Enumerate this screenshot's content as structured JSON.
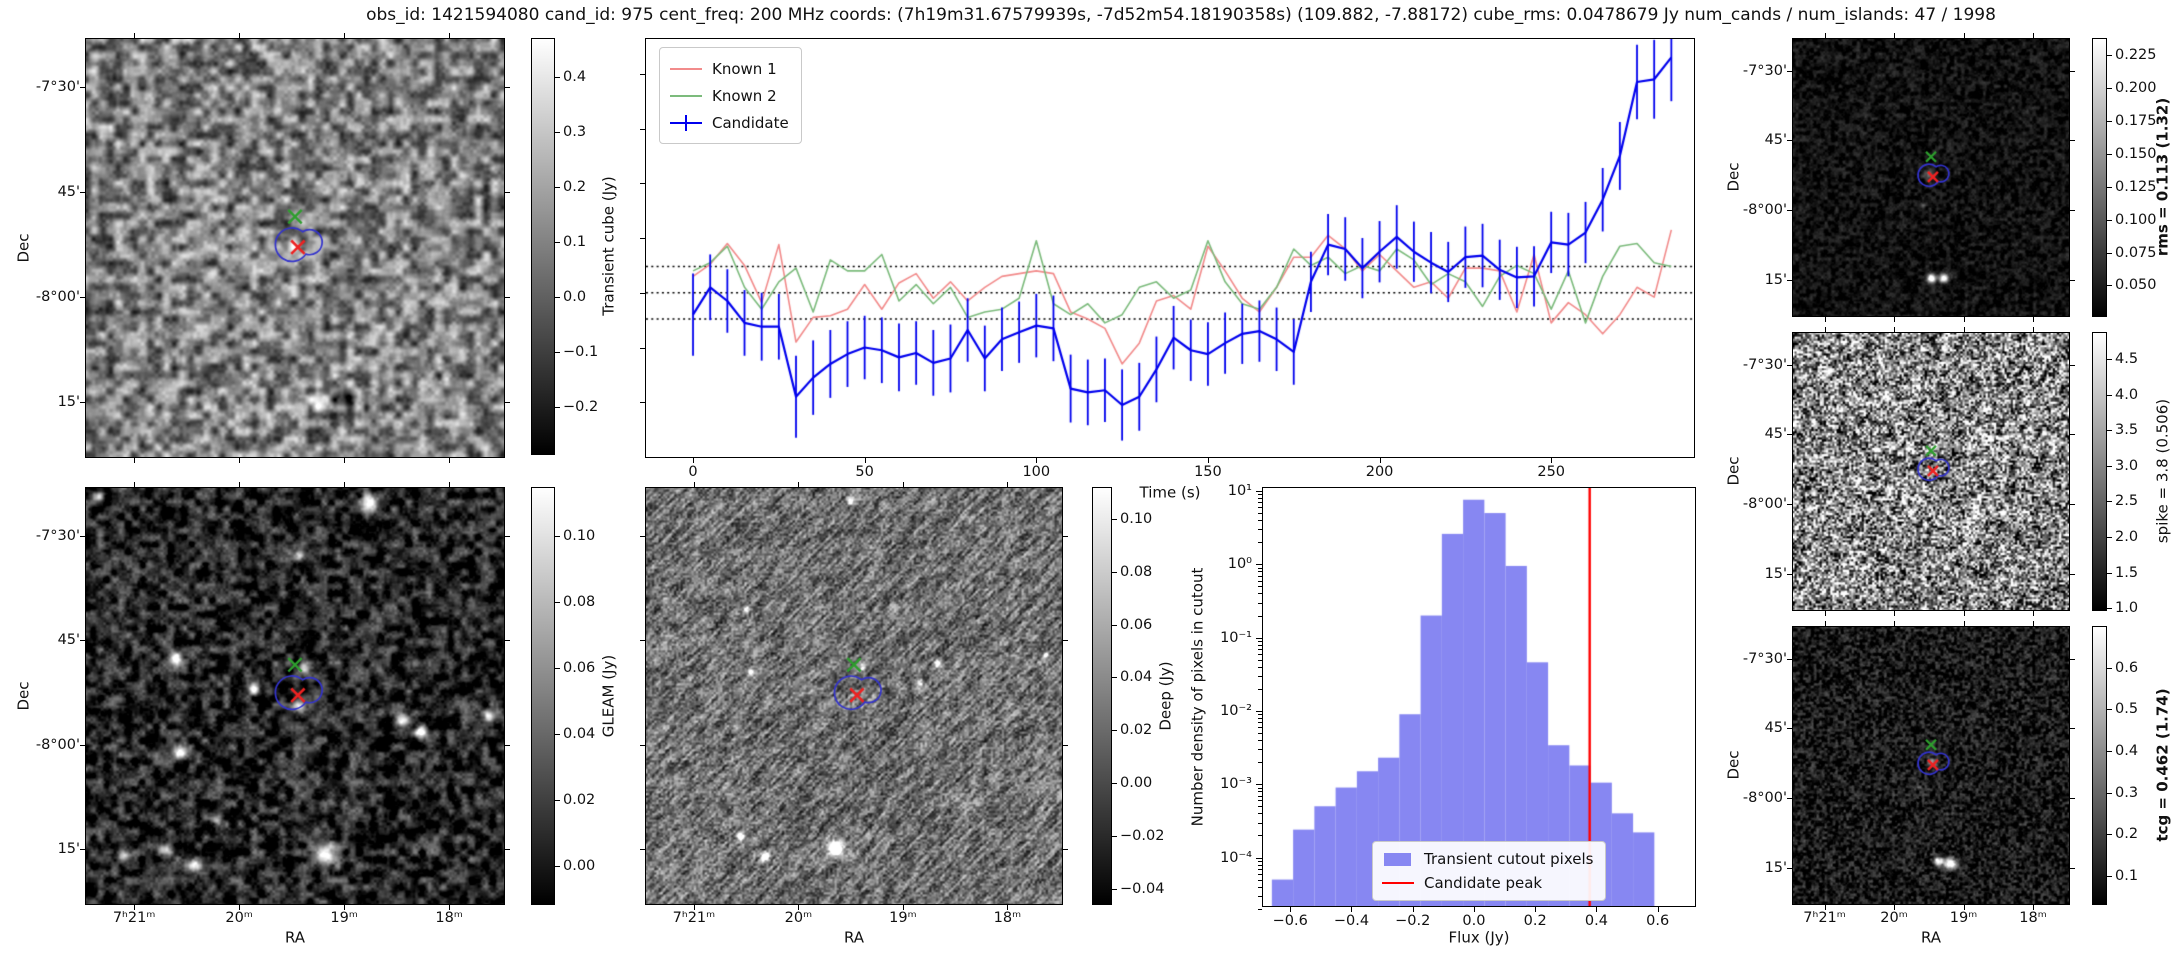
{
  "title": "obs_id: 1421594080 cand_id: 975 cent_freq: 200 MHz coords: (7h19m31.67579939s, -7d52m54.18190358s) (109.882, -7.88172) cube_rms: 0.0478679 Jy num_cands / num_islands: 47 / 1998",
  "labels": {
    "dec": "Dec",
    "ra": "RA",
    "time_axis": "Time (s)",
    "flux_axis": "Flux (Jy)",
    "hist_y": "Number density of pixels in cutout"
  },
  "colors": {
    "known1": "#f28b8b",
    "known2": "#7cbb7c",
    "candidate": "#0000ee",
    "hist_fill": "#8787f2",
    "peak_line": "#ff0000",
    "marker_green": "#2e9e2e",
    "marker_red": "#ee2222",
    "contour_blue": "#3333cc",
    "dotted_line": "#000000"
  },
  "sky": {
    "dec_ticks": [
      "-7°30'",
      "45'",
      "-8°00'",
      "15'"
    ],
    "ra_ticks": [
      "7ʰ21ᵐ",
      "20ᵐ",
      "19ᵐ",
      "18ᵐ"
    ],
    "markers": {
      "green_x": [
        0.5,
        0.425
      ],
      "red_x": [
        0.507,
        0.498
      ],
      "contour_center": [
        0.505,
        0.492
      ]
    }
  },
  "hist_legend": [
    "Transient cutout pixels",
    "Candidate peak"
  ],
  "chart_data": [
    {
      "type": "line",
      "name": "lightcurve",
      "xlabel": "Time (s)",
      "xticks": [
        0,
        50,
        100,
        150,
        200,
        250
      ],
      "xlim": [
        -13.7,
        291.6
      ],
      "ylim": [
        -0.3,
        0.4636
      ],
      "yticks_unlabeled": [
        -0.2,
        -0.1,
        0.0,
        0.1,
        0.2,
        0.3,
        0.4
      ],
      "hlines": [
        0.0478679,
        0.0,
        -0.0478679
      ],
      "x": [
        0,
        5,
        10,
        15,
        20,
        25,
        30,
        35,
        40,
        45,
        50,
        55,
        60,
        65,
        70,
        75,
        80,
        85,
        90,
        95,
        100,
        105,
        110,
        115,
        120,
        125,
        130,
        135,
        140,
        145,
        150,
        155,
        160,
        165,
        170,
        175,
        180,
        185,
        190,
        195,
        200,
        205,
        210,
        215,
        220,
        225,
        230,
        235,
        240,
        245,
        250,
        255,
        260,
        265,
        270,
        275,
        280,
        285
      ],
      "series": [
        {
          "name": "Known 1",
          "values": [
            0.03,
            0.052,
            0.09,
            0.05,
            -0.018,
            0.088,
            -0.09,
            -0.045,
            -0.042,
            -0.03,
            0.015,
            -0.03,
            0.018,
            0.035,
            -0.01,
            0.02,
            -0.015,
            0.01,
            0.03,
            0.035,
            0.04,
            0.035,
            -0.035,
            -0.048,
            -0.065,
            -0.13,
            -0.092,
            -0.015,
            -0.005,
            -0.03,
            0.085,
            0.04,
            -0.01,
            -0.035,
            0.01,
            0.065,
            0.065,
            0.105,
            0.08,
            0.04,
            0.07,
            0.04,
            0.01,
            0.02,
            -0.01,
            0.045,
            0.045,
            0.04,
            -0.035,
            0.07,
            -0.055,
            -0.018,
            -0.04,
            -0.075,
            -0.04,
            0.01,
            -0.008,
            0.115
          ]
        },
        {
          "name": "Known 2",
          "values": [
            0.04,
            0.055,
            0.085,
            0.01,
            -0.03,
            0.02,
            0.045,
            -0.035,
            0.06,
            0.04,
            0.04,
            0.07,
            -0.015,
            0.015,
            -0.02,
            0.01,
            -0.045,
            -0.035,
            -0.03,
            -0.01,
            0.095,
            -0.02,
            -0.04,
            -0.02,
            -0.055,
            -0.04,
            0.01,
            0.02,
            -0.01,
            0.005,
            0.095,
            0.02,
            -0.02,
            -0.03,
            0.01,
            0.08,
            0.05,
            0.065,
            0.035,
            0.05,
            0.04,
            0.08,
            0.06,
            0.015,
            0.035,
            0.02,
            -0.025,
            0.03,
            0.05,
            0.035,
            -0.03,
            0.04,
            -0.055,
            0.03,
            0.085,
            0.09,
            0.055,
            0.048
          ]
        },
        {
          "name": "Candidate",
          "values": [
            -0.04,
            0.01,
            -0.015,
            -0.055,
            -0.062,
            -0.062,
            -0.19,
            -0.155,
            -0.13,
            -0.112,
            -0.1,
            -0.105,
            -0.118,
            -0.11,
            -0.128,
            -0.12,
            -0.068,
            -0.12,
            -0.085,
            -0.072,
            -0.06,
            -0.065,
            -0.175,
            -0.182,
            -0.178,
            -0.205,
            -0.19,
            -0.14,
            -0.082,
            -0.105,
            -0.112,
            -0.092,
            -0.075,
            -0.07,
            -0.085,
            -0.108,
            0.02,
            0.088,
            0.08,
            0.045,
            0.075,
            0.102,
            0.075,
            0.055,
            0.038,
            0.065,
            0.068,
            0.042,
            0.028,
            0.03,
            0.092,
            0.088,
            0.11,
            0.17,
            0.25,
            0.385,
            0.39,
            0.43
          ],
          "errors": [
            0.075,
            0.06,
            0.058,
            0.06,
            0.062,
            0.06,
            0.075,
            0.068,
            0.062,
            0.06,
            0.058,
            0.06,
            0.062,
            0.058,
            0.06,
            0.062,
            0.058,
            0.06,
            0.058,
            0.056,
            0.058,
            0.06,
            0.062,
            0.06,
            0.058,
            0.065,
            0.062,
            0.06,
            0.058,
            0.056,
            0.058,
            0.056,
            0.055,
            0.056,
            0.058,
            0.06,
            0.055,
            0.056,
            0.058,
            0.055,
            0.056,
            0.058,
            0.055,
            0.056,
            0.055,
            0.056,
            0.058,
            0.055,
            0.056,
            0.055,
            0.056,
            0.058,
            0.056,
            0.058,
            0.062,
            0.068,
            0.072,
            0.08
          ]
        }
      ]
    },
    {
      "type": "bar",
      "name": "flux_histogram",
      "xlabel": "Flux (Jy)",
      "ylabel": "Number density of pixels in cutout",
      "yscale": "log",
      "xlim": [
        -0.689,
        0.722
      ],
      "ylim": [
        2e-05,
        11
      ],
      "xtick_labels": [
        "−0.6",
        "−0.4",
        "−0.2",
        "0.0",
        "0.2",
        "0.4",
        "0.6"
      ],
      "xticks": [
        -0.6,
        -0.4,
        -0.2,
        0.0,
        0.2,
        0.4,
        0.6
      ],
      "ytick_labels": [
        "10¹",
        "10⁰",
        "10⁻¹",
        "10⁻²",
        "10⁻³",
        "10⁻⁴"
      ],
      "ytick_decades": [
        1,
        0,
        -1,
        -2,
        -3,
        -4
      ],
      "bin_start": -0.66,
      "bin_width": 0.0694,
      "values": [
        5e-05,
        0.00024,
        0.0005,
        0.0009,
        0.0015,
        0.0023,
        0.009,
        0.2,
        2.6,
        7.6,
        5.0,
        0.95,
        0.046,
        0.0034,
        0.0018,
        0.00105,
        0.0004,
        0.00022
      ],
      "candidate_peak": 0.378
    },
    {
      "type": "heatmap",
      "name": "transient_cube_map",
      "colorbar_label": "Transient cube (Jy)",
      "colorbar_ticks": [
        "0.4",
        "0.3",
        "0.2",
        "0.1",
        "0.0",
        "−0.1",
        "−0.2"
      ],
      "colorbar_range": [
        -0.287,
        0.471
      ],
      "bold_label": false
    },
    {
      "type": "heatmap",
      "name": "gleam_map",
      "colorbar_label": "GLEAM (Jy)",
      "colorbar_ticks": [
        "0.10",
        "0.08",
        "0.06",
        "0.04",
        "0.02",
        "0.00"
      ],
      "colorbar_range": [
        -0.012,
        0.115
      ],
      "bold_label": false
    },
    {
      "type": "heatmap",
      "name": "deep_map",
      "colorbar_label": "Deep (Jy)",
      "colorbar_ticks": [
        "0.10",
        "0.08",
        "0.06",
        "0.04",
        "0.02",
        "0.00",
        "−0.02",
        "−0.04"
      ],
      "colorbar_range": [
        -0.046,
        0.112
      ],
      "bold_label": false
    },
    {
      "type": "heatmap",
      "name": "rms_map",
      "colorbar_label": "rms = 0.113 (1.32)",
      "colorbar_ticks": [
        "0.225",
        "0.200",
        "0.175",
        "0.150",
        "0.125",
        "0.100",
        "0.075",
        "0.050"
      ],
      "colorbar_range": [
        0.026,
        0.238
      ],
      "bold_label": true
    },
    {
      "type": "heatmap",
      "name": "spike_map",
      "colorbar_label": "spike = 3.8 (0.506)",
      "colorbar_ticks": [
        "4.5",
        "4.0",
        "3.5",
        "3.0",
        "2.5",
        "2.0",
        "1.5",
        "1.0"
      ],
      "colorbar_range": [
        0.96,
        4.88
      ],
      "bold_label": false
    },
    {
      "type": "heatmap",
      "name": "tcg_map",
      "colorbar_label": "tcg = 0.462 (1.74)",
      "colorbar_ticks": [
        "0.6",
        "0.5",
        "0.4",
        "0.3",
        "0.2",
        "0.1"
      ],
      "colorbar_range": [
        0.03,
        0.7
      ],
      "bold_label": true
    }
  ]
}
